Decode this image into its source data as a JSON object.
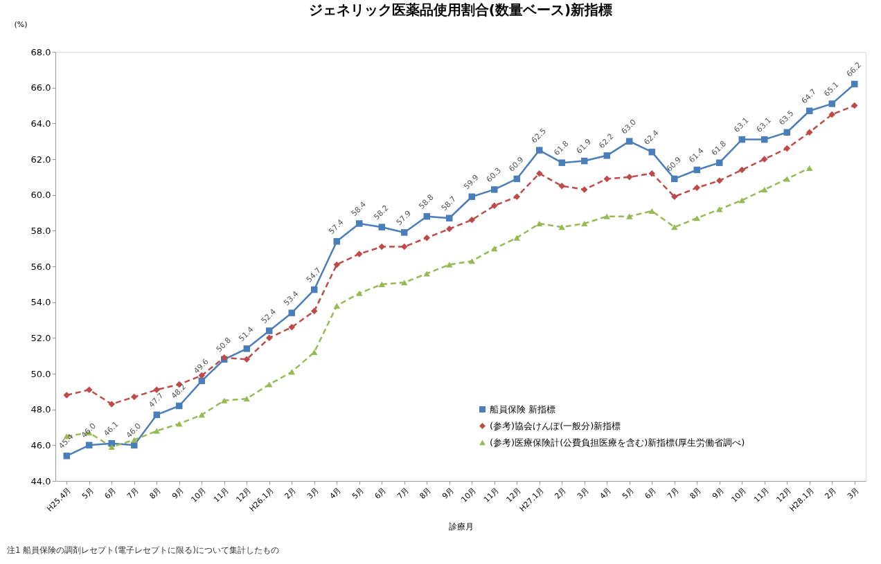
{
  "chart_data": {
    "type": "line",
    "title": "ジェネリック医薬品使用割合(数量ベース)新指標",
    "xlabel": "診療月",
    "ylabel": "(%)",
    "categories": [
      "H25.4月",
      "5月",
      "6月",
      "7月",
      "8月",
      "9月",
      "10月",
      "11月",
      "12月",
      "H26.1月",
      "2月",
      "3月",
      "4月",
      "5月",
      "6月",
      "7月",
      "8月",
      "9月",
      "10月",
      "11月",
      "12月",
      "H27.1月",
      "2月",
      "3月",
      "4月",
      "5月",
      "6月",
      "7月",
      "8月",
      "9月",
      "10月",
      "11月",
      "12月",
      "H28.1月",
      "2月",
      "3月"
    ],
    "series": [
      {
        "name": "船員保険 新指標",
        "color": "#4a7ebb",
        "marker": "square",
        "line_style": "solid",
        "values": [
          45.4,
          46.0,
          46.1,
          46.0,
          47.7,
          48.2,
          49.6,
          50.8,
          51.4,
          52.4,
          53.4,
          54.7,
          57.4,
          58.4,
          58.2,
          57.9,
          58.8,
          58.7,
          59.9,
          60.3,
          60.9,
          62.5,
          61.8,
          61.9,
          62.2,
          63.0,
          62.4,
          60.9,
          61.4,
          61.8,
          63.1,
          63.1,
          63.5,
          64.7,
          65.1,
          66.2
        ],
        "value_labels": [
          "45.4",
          "46.0",
          "46.1",
          "46.0",
          "47.7",
          "48.2",
          "49.6",
          "50.8",
          "51.4",
          "52.4",
          "53.4",
          "54.7",
          "57.4",
          "58.4",
          "58.2",
          "57.9",
          "58.8",
          "58.7",
          "59.9",
          "60.3",
          "60.9",
          "62.5",
          "61.8",
          "61.9",
          "62.2",
          "63.0",
          "62.4",
          "60.9",
          "61.4",
          "61.8",
          "63.1",
          "63.1",
          "63.5",
          "64.7",
          "65.1",
          "66.2"
        ]
      },
      {
        "name": "(参考)協会けんぽ(一般分)新指標",
        "color": "#be4b48",
        "marker": "diamond",
        "line_style": "dashed",
        "values": [
          48.8,
          49.1,
          48.3,
          48.7,
          49.1,
          49.4,
          49.9,
          50.9,
          50.8,
          52.0,
          52.6,
          53.5,
          56.1,
          56.7,
          57.1,
          57.1,
          57.6,
          58.1,
          58.6,
          59.4,
          59.9,
          61.2,
          60.5,
          60.3,
          60.9,
          61.0,
          61.2,
          59.9,
          60.4,
          60.8,
          61.4,
          62.0,
          62.6,
          63.5,
          64.5,
          65.0
        ]
      },
      {
        "name": "(参考)医療保険計(公費負担医療を含む)新指標(厚生労働省調べ)",
        "color": "#98b954",
        "marker": "triangle",
        "line_style": "dashed",
        "values": [
          46.5,
          46.7,
          45.9,
          46.3,
          46.8,
          47.2,
          47.7,
          48.5,
          48.6,
          49.4,
          50.1,
          51.2,
          53.8,
          54.5,
          55.0,
          55.1,
          55.6,
          56.1,
          56.3,
          57.0,
          57.6,
          58.4,
          58.2,
          58.4,
          58.8,
          58.8,
          59.1,
          58.2,
          58.7,
          59.2,
          59.7,
          60.3,
          60.9,
          61.5,
          null,
          null
        ]
      }
    ],
    "ylim": [
      44.0,
      68.0
    ],
    "yticks": [
      {
        "value": 44,
        "label": "44.0"
      },
      {
        "value": 46,
        "label": "46.0"
      },
      {
        "value": 48,
        "label": "48.0"
      },
      {
        "value": 50,
        "label": "50.0"
      },
      {
        "value": 52,
        "label": "52.0"
      },
      {
        "value": 54,
        "label": "54.0"
      },
      {
        "value": 56,
        "label": "56.0"
      },
      {
        "value": 58,
        "label": "58.0"
      },
      {
        "value": 60,
        "label": "60.0"
      },
      {
        "value": 62,
        "label": "62.0"
      },
      {
        "value": 64,
        "label": "64.0"
      },
      {
        "value": 66,
        "label": "66.0"
      },
      {
        "value": 68,
        "label": "68.0"
      }
    ],
    "grid": false,
    "legend": "bottom right",
    "annotations": [
      "注1 船員保険の調剤レセプト(電子レセプトに限る)について集計したもの"
    ]
  }
}
